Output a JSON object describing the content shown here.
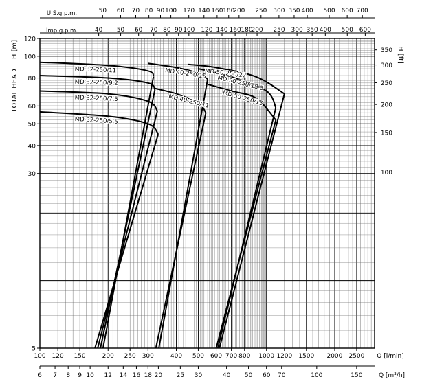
{
  "chart_data": {
    "type": "line",
    "title": "",
    "xlabel": "Q [l/min]",
    "xlabel2": "Q [m³/h]",
    "ylabel": "TOTAL HEAD",
    "ylabel_unit": "H [m]",
    "ylabel2": "H [ft]",
    "xscale": "log",
    "yscale": "log",
    "xlim": [
      100,
      3000
    ],
    "ylim": [
      5,
      120
    ],
    "grid": true,
    "top_axes": {
      "usgpm_label": "U.S.g.p.m.",
      "usgpm_ticks": [
        "50",
        "60",
        "70",
        "80",
        "90",
        "100",
        "120",
        "140",
        "160",
        "180",
        "200",
        "250",
        "300",
        "350",
        "400",
        "500",
        "600",
        "700"
      ],
      "impgpm_label": "Imp.g.p.m.",
      "impgpm_ticks": [
        "40",
        "50",
        "60",
        "70",
        "80",
        "90",
        "100",
        "120",
        "140",
        "160",
        "180",
        "200",
        "250",
        "300",
        "350",
        "400",
        "500",
        "600"
      ]
    },
    "x_ticks_lmin": [
      "100",
      "120",
      "150",
      "200",
      "250",
      "300",
      "400",
      "500",
      "600",
      "700",
      "800",
      "1000",
      "1200",
      "1500",
      "2000",
      "2500"
    ],
    "x_ticks_m3h": [
      "6",
      "7",
      "8",
      "9",
      "10",
      "12",
      "14",
      "16",
      "18",
      "20",
      "25",
      "30",
      "40",
      "50",
      "60",
      "70",
      "100",
      "150"
    ],
    "y_ticks_m": [
      "5",
      "30",
      "40",
      "50",
      "60",
      "80",
      "100",
      "120"
    ],
    "y_ticks_ft": [
      "100",
      "150",
      "200",
      "250",
      "300",
      "350"
    ],
    "series": [
      {
        "name": "MD 32-250/5.5",
        "q": [
          100,
          200,
          300,
          333
        ],
        "h": [
          56.5,
          54,
          50,
          45
        ],
        "cut": [
          [
            333,
            45
          ],
          [
            175,
            5
          ]
        ]
      },
      {
        "name": "MD 32-250/7.5",
        "q": [
          100,
          200,
          300,
          330
        ],
        "h": [
          70,
          68,
          63,
          57
        ],
        "cut": [
          [
            330,
            57
          ],
          [
            180,
            5
          ]
        ]
      },
      {
        "name": "MD 32-250/9.2",
        "q": [
          100,
          200,
          300,
          322
        ],
        "h": [
          82,
          80,
          76,
          71
        ],
        "cut": [
          [
            322,
            71
          ],
          [
            185,
            5
          ]
        ]
      },
      {
        "name": "MD 32-250/11",
        "q": [
          100,
          200,
          300,
          317
        ],
        "h": [
          94,
          91,
          86,
          81
        ],
        "cut": [
          [
            317,
            81
          ],
          [
            190,
            5
          ]
        ]
      },
      {
        "name": "MD 40-250/11",
        "q": [
          320,
          400,
          500,
          540
        ],
        "h": [
          72,
          68,
          62,
          56
        ],
        "cut": [
          [
            540,
            56
          ],
          [
            325,
            5
          ]
        ]
      },
      {
        "name": "MD 40-250/15",
        "q": [
          300,
          400,
          500,
          550
        ],
        "h": [
          93,
          89,
          84,
          79
        ],
        "cut": [
          [
            550,
            79
          ],
          [
            335,
            5
          ]
        ]
      },
      {
        "name": "MD 50-250/15",
        "q": [
          550,
          700,
          900,
          1100
        ],
        "h": [
          75,
          70,
          65,
          52
        ],
        "cut": [
          [
            1100,
            52
          ],
          [
            600,
            5
          ]
        ]
      },
      {
        "name": "MD 50-250/18.5",
        "q": [
          500,
          700,
          1000,
          1100
        ],
        "h": [
          88,
          81,
          70,
          59
        ],
        "cut": [
          [
            1100,
            59
          ],
          [
            610,
            5
          ]
        ]
      },
      {
        "name": "MD 50-250/22",
        "q": [
          450,
          600,
          900,
          1200
        ],
        "h": [
          92,
          89,
          81,
          68
        ],
        "cut": [
          [
            1200,
            68
          ],
          [
            620,
            5
          ]
        ]
      }
    ]
  }
}
